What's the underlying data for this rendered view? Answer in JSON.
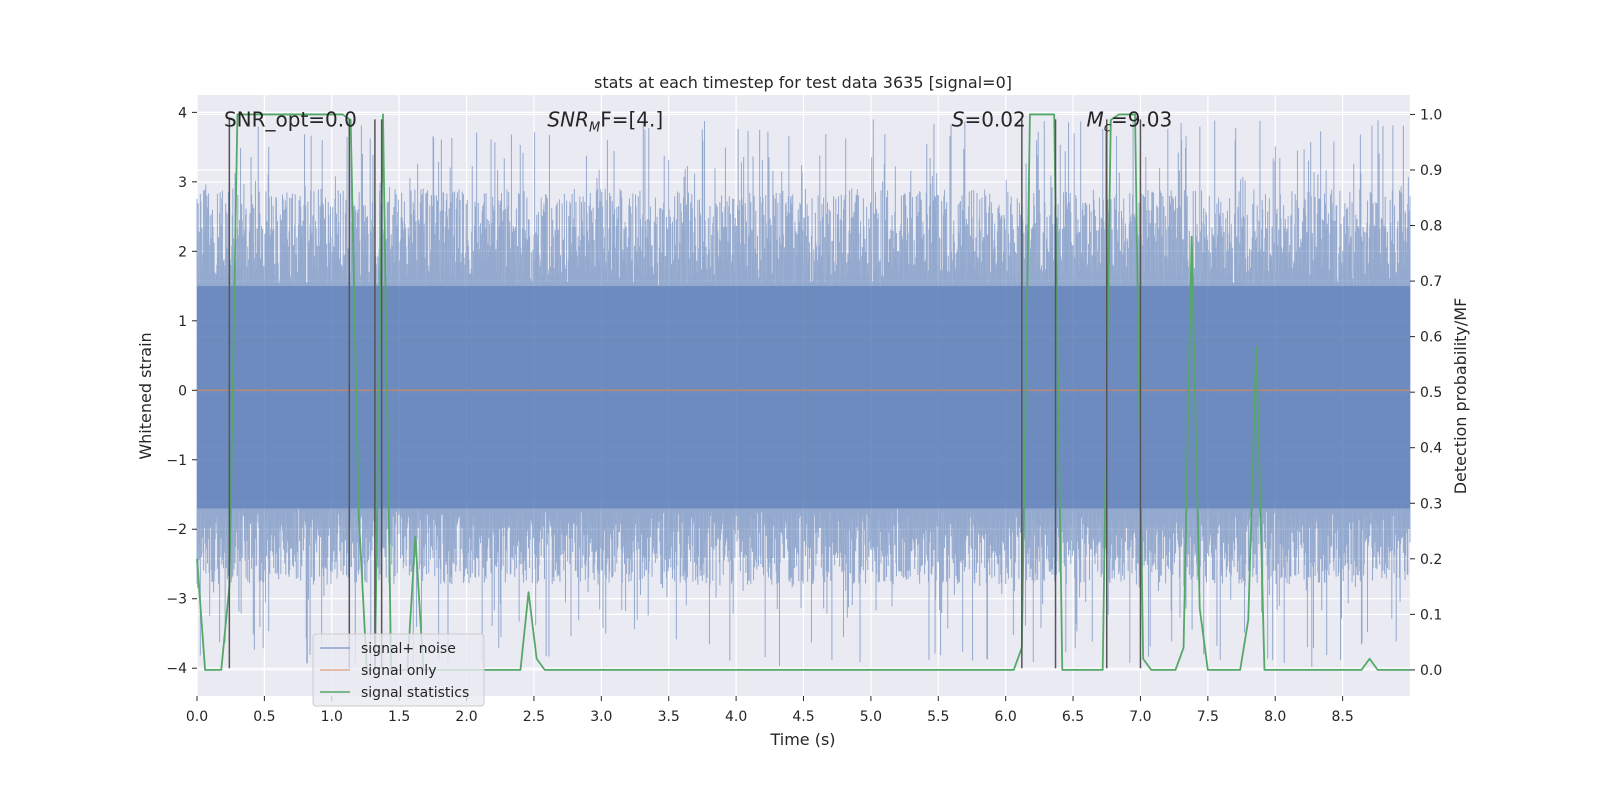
{
  "chart_data": {
    "type": "line",
    "title": "stats at each timestep for test data 3635 [signal=0]",
    "xlabel": "Time (s)",
    "ylabel": "Whitened strain",
    "ylabel_right": "Detection probability/MF",
    "xlim": [
      0.0,
      9.0
    ],
    "ylim": [
      -4.4,
      4.25
    ],
    "ylim_right": [
      -0.047,
      1.035
    ],
    "x_ticks": [
      0.0,
      0.5,
      1.0,
      1.5,
      2.0,
      2.5,
      3.0,
      3.5,
      4.0,
      4.5,
      5.0,
      5.5,
      6.0,
      6.5,
      7.0,
      7.5,
      8.0,
      8.5
    ],
    "x_tick_labels": [
      "0.0",
      "0.5",
      "1.0",
      "1.5",
      "2.0",
      "2.5",
      "3.0",
      "3.5",
      "4.0",
      "4.5",
      "5.0",
      "5.5",
      "6.0",
      "6.5",
      "7.0",
      "7.5",
      "8.0",
      "8.5"
    ],
    "y_ticks": [
      -4,
      -3,
      -2,
      -1,
      0,
      1,
      2,
      3,
      4
    ],
    "y_tick_labels": [
      "−4",
      "−3",
      "−2",
      "−1",
      "0",
      "1",
      "2",
      "3",
      "4"
    ],
    "y_right_ticks": [
      0.0,
      0.1,
      0.2,
      0.3,
      0.4,
      0.5,
      0.6,
      0.7,
      0.8,
      0.9,
      1.0
    ],
    "y_right_tick_labels": [
      "0.0",
      "0.1",
      "0.2",
      "0.3",
      "0.4",
      "0.5",
      "0.6",
      "0.7",
      "0.8",
      "0.9",
      "1.0"
    ],
    "grid": true,
    "legend_position": "lower-left",
    "annotations": [
      {
        "text": "SNR_opt=0.0",
        "x": 0.2,
        "y": 3.9
      },
      {
        "text": "SNR",
        "sub": "M",
        "tail": "F=[4.]",
        "italic": true,
        "x": 2.6,
        "y": 3.9
      },
      {
        "text": "S",
        "tail": "=0.02",
        "italic": true,
        "x": 5.6,
        "y": 3.9
      },
      {
        "text": "M",
        "sub": "c",
        "tail": "=9.03",
        "italic": true,
        "x": 6.6,
        "y": 3.9
      }
    ],
    "series": [
      {
        "name": "signal+ noise",
        "color": "#4c72b0",
        "axis": "left",
        "band": {
          "inner_low": -1.7,
          "inner_high": 1.5,
          "outer_low": -2.8,
          "outer_high": 2.9,
          "peak_low": -4.0,
          "peak_high": 3.9,
          "samples": 2200
        }
      },
      {
        "name": "signal only",
        "color": "#dd8452",
        "axis": "left",
        "x": [
          0.0,
          9.0
        ],
        "values": [
          0.0,
          0.0
        ]
      },
      {
        "name": "signal statistics",
        "color": "#55a868",
        "axis": "right",
        "x": [
          0.0,
          0.06,
          0.18,
          0.24,
          0.3,
          0.36,
          0.42,
          0.48,
          0.54,
          0.6,
          0.66,
          0.72,
          0.78,
          0.84,
          0.9,
          0.96,
          1.02,
          1.08,
          1.14,
          1.2,
          1.26,
          1.32,
          1.38,
          1.44,
          1.5,
          1.56,
          1.62,
          1.68,
          1.74,
          1.8,
          1.86,
          1.92,
          1.98,
          2.04,
          2.1,
          2.16,
          2.22,
          2.28,
          2.34,
          2.4,
          2.46,
          2.52,
          2.58,
          2.64,
          6.06,
          6.12,
          6.18,
          6.24,
          6.3,
          6.36,
          6.42,
          6.48,
          6.54,
          6.6,
          6.66,
          6.72,
          6.78,
          6.84,
          6.9,
          6.96,
          7.02,
          7.08,
          7.14,
          7.2,
          7.26,
          7.32,
          7.38,
          7.44,
          7.5,
          7.56,
          7.62,
          7.68,
          7.74,
          7.8,
          7.86,
          7.92,
          7.98,
          8.04,
          8.1,
          8.16,
          8.22,
          8.28,
          8.34,
          8.4,
          8.46,
          8.52,
          8.58,
          8.64,
          8.7,
          8.76,
          8.82,
          8.88,
          8.94,
          9.0
        ],
        "values": [
          0.2,
          0.0,
          0.0,
          0.15,
          1.0,
          1.0,
          1.0,
          1.0,
          1.0,
          1.0,
          1.0,
          1.0,
          1.0,
          1.0,
          1.0,
          1.0,
          1.0,
          1.0,
          0.99,
          0.28,
          0.0,
          0.0,
          1.0,
          0.0,
          0.0,
          0.0,
          0.24,
          0.0,
          0.0,
          0.0,
          0.0,
          0.0,
          0.0,
          0.0,
          0.0,
          0.0,
          0.0,
          0.0,
          0.0,
          0.0,
          0.14,
          0.02,
          0.0,
          0.0,
          0.0,
          0.04,
          1.0,
          1.0,
          1.0,
          1.0,
          0.0,
          0.0,
          0.0,
          0.0,
          0.0,
          0.0,
          0.99,
          1.0,
          1.0,
          1.0,
          0.02,
          0.0,
          0.0,
          0.0,
          0.0,
          0.04,
          0.78,
          0.11,
          0.0,
          0.0,
          0.0,
          0.0,
          0.0,
          0.09,
          0.58,
          0.0,
          0.0,
          0.0,
          0.0,
          0.0,
          0.0,
          0.0,
          0.0,
          0.0,
          0.0,
          0.0,
          0.0,
          0.0,
          0.02,
          0.0,
          0.0,
          0.0,
          0.0,
          0.0
        ]
      }
    ],
    "markers": [
      {
        "x": 0.24,
        "color": "#555555"
      },
      {
        "x": 1.13,
        "color": "#555555"
      },
      {
        "x": 1.32,
        "color": "#555555"
      },
      {
        "x": 1.37,
        "color": "#555555"
      },
      {
        "x": 6.12,
        "color": "#555555"
      },
      {
        "x": 6.37,
        "color": "#555555"
      },
      {
        "x": 6.75,
        "color": "#555555"
      },
      {
        "x": 7.0,
        "color": "#555555"
      }
    ],
    "colors": {
      "plot_bg": "#eaeaf2",
      "grid": "#ffffff",
      "text": "#262626"
    }
  }
}
